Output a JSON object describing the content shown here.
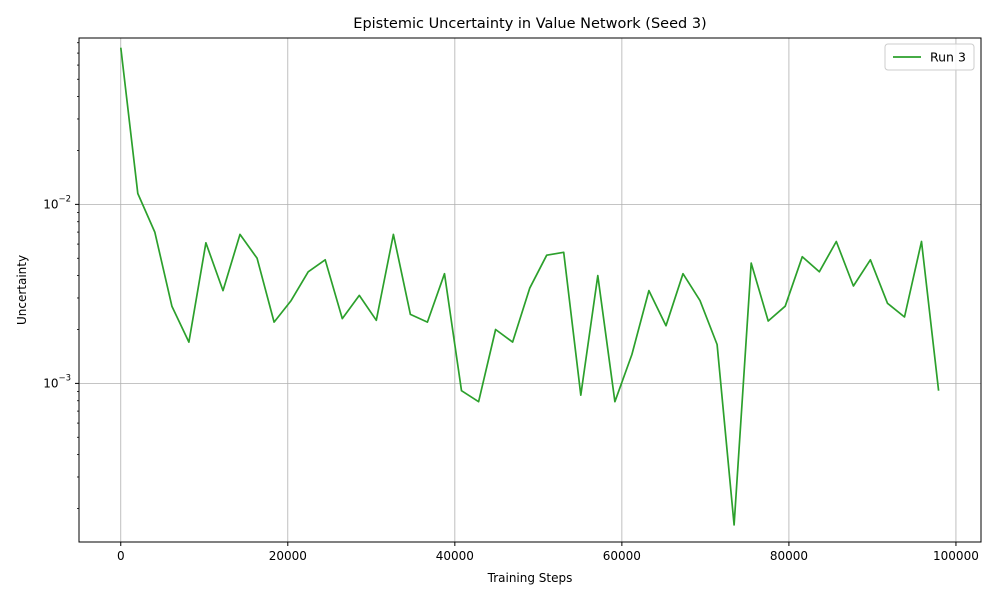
{
  "chart_data": {
    "type": "line",
    "title": "Epistemic Uncertainty in Value Network (Seed 3)",
    "xlabel": "Training Steps",
    "ylabel": "Uncertainty",
    "xlim": [
      -5000,
      103000
    ],
    "ylim": [
      0.00013,
      0.085
    ],
    "yscale": "log",
    "grid": true,
    "legend_position": "top-right",
    "x_ticks": [
      0,
      20000,
      40000,
      60000,
      80000,
      100000
    ],
    "x_tick_labels": [
      "0",
      "20000",
      "40000",
      "60000",
      "80000",
      "100000"
    ],
    "y_ticks": [
      0.001,
      0.01
    ],
    "y_tick_base": "10",
    "y_tick_exponents": [
      "−3",
      "−2"
    ],
    "series": [
      {
        "name": "Run 3",
        "color": "#2ca02c",
        "x": [
          0,
          2040,
          4080,
          6120,
          8160,
          10200,
          12240,
          14280,
          16320,
          18360,
          20400,
          22440,
          24480,
          26520,
          28560,
          30600,
          32640,
          34680,
          36720,
          38760,
          40800,
          42840,
          44880,
          46920,
          48960,
          51000,
          53040,
          55080,
          57120,
          59160,
          61200,
          63240,
          65280,
          67320,
          69360,
          71400,
          73440,
          75480,
          77520,
          79560,
          81600,
          83640,
          85680,
          87720,
          89760,
          91800,
          93840,
          95880,
          97920
        ],
        "values": [
          0.075,
          0.0115,
          0.007,
          0.0027,
          0.0017,
          0.0061,
          0.0033,
          0.0068,
          0.005,
          0.0022,
          0.0029,
          0.0042,
          0.0049,
          0.0023,
          0.0031,
          0.00225,
          0.0068,
          0.00243,
          0.0022,
          0.0041,
          0.00091,
          0.00079,
          0.002,
          0.0017,
          0.0034,
          0.0052,
          0.0054,
          0.00086,
          0.004,
          0.00079,
          0.00145,
          0.0033,
          0.0021,
          0.0041,
          0.0029,
          0.00165,
          0.000162,
          0.0047,
          0.00223,
          0.0027,
          0.0051,
          0.0042,
          0.0062,
          0.0035,
          0.0049,
          0.0028,
          0.00235,
          0.0062,
          0.00091
        ]
      }
    ]
  }
}
